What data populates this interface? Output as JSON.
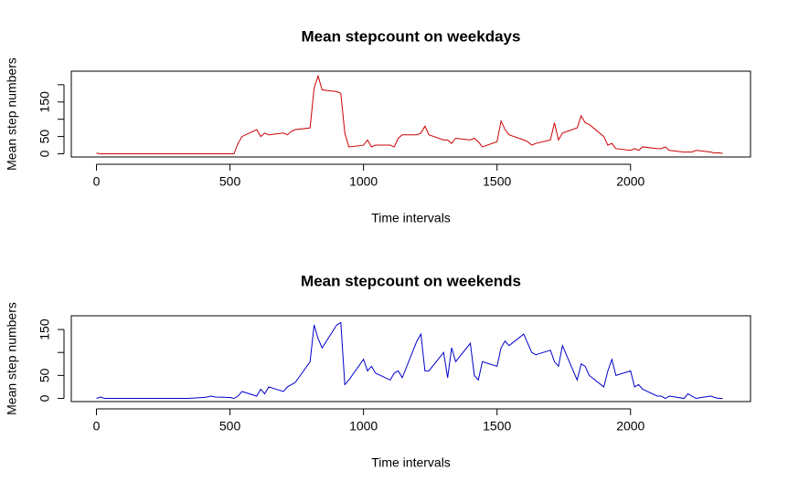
{
  "chart_data": [
    {
      "type": "line",
      "title": "Mean stepcount on weekdays",
      "xlabel": "Time intervals",
      "ylabel": "Mean step numbers",
      "color": "#cc0000",
      "x": [
        0,
        15,
        30,
        45,
        100,
        115,
        130,
        145,
        200,
        215,
        230,
        245,
        300,
        315,
        330,
        345,
        400,
        415,
        430,
        445,
        500,
        515,
        530,
        545,
        600,
        615,
        630,
        645,
        700,
        715,
        730,
        745,
        800,
        815,
        830,
        845,
        900,
        915,
        930,
        945,
        1000,
        1015,
        1030,
        1045,
        1100,
        1115,
        1130,
        1145,
        1200,
        1215,
        1230,
        1245,
        1300,
        1315,
        1330,
        1345,
        1400,
        1415,
        1430,
        1445,
        1500,
        1515,
        1530,
        1545,
        1600,
        1615,
        1630,
        1645,
        1700,
        1715,
        1730,
        1745,
        1800,
        1815,
        1830,
        1845,
        1900,
        1915,
        1930,
        1945,
        2000,
        2015,
        2030,
        2045,
        2100,
        2115,
        2130,
        2145,
        2200,
        2215,
        2230,
        2245,
        2300,
        2315,
        2330,
        2345
      ],
      "values": [
        2,
        0,
        0,
        0,
        0,
        0,
        0,
        0,
        0,
        0,
        0,
        0,
        0,
        0,
        0,
        0,
        0,
        0,
        0,
        0,
        0,
        0,
        30,
        50,
        70,
        50,
        60,
        55,
        60,
        55,
        65,
        70,
        75,
        190,
        225,
        185,
        180,
        175,
        60,
        20,
        25,
        40,
        20,
        25,
        25,
        20,
        45,
        55,
        55,
        60,
        80,
        55,
        40,
        40,
        30,
        45,
        40,
        45,
        35,
        20,
        35,
        95,
        70,
        55,
        40,
        35,
        25,
        30,
        40,
        90,
        40,
        60,
        75,
        110,
        90,
        85,
        50,
        25,
        30,
        15,
        10,
        15,
        10,
        20,
        15,
        15,
        20,
        10,
        5,
        5,
        5,
        10,
        5,
        2,
        3,
        1
      ],
      "xlim": [
        -94.2,
        2449.2
      ],
      "xticks": [
        0,
        500,
        1000,
        1500,
        2000
      ],
      "ylim": [
        -9.2,
        239.2
      ],
      "yticks": [
        0,
        50,
        100,
        150,
        200
      ]
    },
    {
      "type": "line",
      "title": "Mean stepcount on weekends",
      "xlabel": "Time intervals",
      "ylabel": "Mean step numbers",
      "color": "#0000cc",
      "x": [
        0,
        15,
        30,
        45,
        100,
        115,
        130,
        145,
        200,
        215,
        230,
        245,
        300,
        315,
        330,
        345,
        400,
        415,
        430,
        445,
        500,
        515,
        530,
        545,
        600,
        615,
        630,
        645,
        700,
        715,
        730,
        745,
        800,
        815,
        830,
        845,
        900,
        915,
        930,
        945,
        1000,
        1015,
        1030,
        1045,
        1100,
        1115,
        1130,
        1145,
        1200,
        1215,
        1230,
        1245,
        1300,
        1315,
        1330,
        1345,
        1400,
        1415,
        1430,
        1445,
        1500,
        1515,
        1530,
        1545,
        1600,
        1615,
        1630,
        1645,
        1700,
        1715,
        1730,
        1745,
        1800,
        1815,
        1830,
        1845,
        1900,
        1915,
        1930,
        1945,
        2000,
        2015,
        2030,
        2045,
        2100,
        2115,
        2130,
        2145,
        2200,
        2215,
        2230,
        2245,
        2300,
        2315,
        2330,
        2345
      ],
      "values": [
        0,
        3,
        0,
        0,
        0,
        0,
        0,
        0,
        0,
        0,
        0,
        0,
        0,
        0,
        0,
        0,
        2,
        3,
        5,
        3,
        2,
        0,
        5,
        15,
        5,
        20,
        10,
        25,
        15,
        25,
        30,
        35,
        80,
        160,
        130,
        110,
        160,
        165,
        30,
        40,
        85,
        60,
        70,
        55,
        40,
        55,
        60,
        45,
        125,
        140,
        60,
        60,
        100,
        45,
        110,
        80,
        120,
        50,
        40,
        80,
        70,
        110,
        125,
        115,
        140,
        120,
        100,
        95,
        105,
        80,
        70,
        115,
        40,
        75,
        70,
        50,
        25,
        60,
        85,
        50,
        60,
        25,
        30,
        20,
        5,
        5,
        0,
        5,
        0,
        10,
        5,
        0,
        5,
        2,
        0,
        0
      ],
      "xlim": [
        -94.2,
        2449.2
      ],
      "xticks": [
        0,
        500,
        1000,
        1500,
        2000
      ],
      "ylim": [
        -6.9,
        179.9
      ],
      "yticks": [
        0,
        50,
        100,
        150
      ]
    }
  ]
}
